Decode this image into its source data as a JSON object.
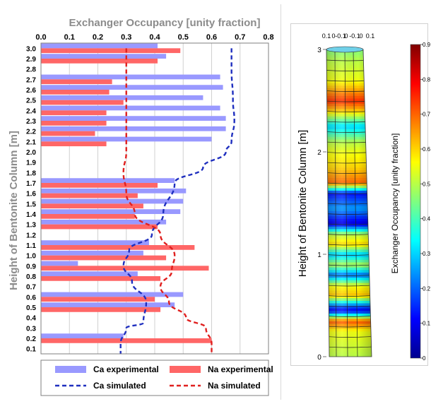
{
  "chart_data": [
    {
      "type": "bar",
      "title": "Exchanger Occupancy [unity fraction]",
      "ylabel": "Height of Bentonite Column  [m]",
      "xlim": [
        0,
        0.8
      ],
      "x_ticks": [
        "0.0",
        "0.1",
        "0.2",
        "0.3",
        "0.4",
        "0.5",
        "0.6",
        "0.7",
        "0.8"
      ],
      "categories": [
        "3.0",
        "2.9",
        "2.8",
        "2.7",
        "2.6",
        "2.5",
        "2.4",
        "2.3",
        "2.2",
        "2.1",
        "2.0",
        "1.9",
        "1.8",
        "1.7",
        "1.6",
        "1.5",
        "1.4",
        "1.3",
        "1.2",
        "1.1",
        "1.0",
        "0.9",
        "0.8",
        "0.7",
        "0.6",
        "0.5",
        "0.4",
        "0.3",
        "0.2",
        "0.1"
      ],
      "series": [
        {
          "name": "Ca experimental",
          "kind": "bar",
          "color": "#9999ff",
          "values": [
            0.41,
            0.44,
            null,
            0.63,
            0.64,
            0.57,
            0.63,
            0.65,
            0.65,
            0.6,
            null,
            null,
            null,
            0.47,
            0.51,
            0.5,
            0.49,
            0.44,
            null,
            0.38,
            0.36,
            0.13,
            0.34,
            null,
            0.5,
            0.47,
            null,
            null,
            0.29,
            null
          ]
        },
        {
          "name": "Na experimental",
          "kind": "bar",
          "color": "#ff6666",
          "values": [
            0.49,
            0.41,
            null,
            0.25,
            0.24,
            0.29,
            0.23,
            0.23,
            0.19,
            0.23,
            null,
            null,
            null,
            0.41,
            0.34,
            0.36,
            0.33,
            0.41,
            null,
            0.54,
            0.44,
            0.59,
            0.42,
            null,
            0.4,
            0.42,
            null,
            null,
            0.6,
            null
          ]
        },
        {
          "name": "Ca simulated",
          "kind": "line",
          "style": "dashed",
          "color": "#1f2fbf",
          "points": [
            [
              0.67,
              3.0
            ],
            [
              0.67,
              2.8
            ],
            [
              0.675,
              2.5
            ],
            [
              0.68,
              2.3
            ],
            [
              0.67,
              2.1
            ],
            [
              0.65,
              2.0
            ],
            [
              0.57,
              1.85
            ],
            [
              0.47,
              1.7
            ],
            [
              0.43,
              1.4
            ],
            [
              0.39,
              1.2
            ],
            [
              0.31,
              1.05
            ],
            [
              0.29,
              0.9
            ],
            [
              0.32,
              0.75
            ],
            [
              0.37,
              0.55
            ],
            [
              0.36,
              0.35
            ],
            [
              0.3,
              0.3
            ],
            [
              0.28,
              0.15
            ],
            [
              0.28,
              0.05
            ]
          ]
        },
        {
          "name": "Na simulated",
          "kind": "line",
          "style": "dashed",
          "color": "#e0201f",
          "points": [
            [
              0.3,
              3.0
            ],
            [
              0.3,
              2.6
            ],
            [
              0.3,
              2.0
            ],
            [
              0.29,
              1.8
            ],
            [
              0.3,
              1.6
            ],
            [
              0.33,
              1.4
            ],
            [
              0.42,
              1.2
            ],
            [
              0.47,
              1.0
            ],
            [
              0.46,
              0.85
            ],
            [
              0.42,
              0.7
            ],
            [
              0.45,
              0.55
            ],
            [
              0.51,
              0.4
            ],
            [
              0.58,
              0.3
            ],
            [
              0.6,
              0.15
            ],
            [
              0.6,
              0.05
            ]
          ]
        }
      ],
      "legend": {
        "position": "bottom",
        "columns": 2
      },
      "grid": "vertical"
    },
    {
      "type": "heatmap",
      "subtype": "3d-column-render",
      "ylabel": "Height of Bentonite Column [m]",
      "y_ticks": [
        "3",
        "2",
        "1",
        "0"
      ],
      "top_ticks": [
        "0.1",
        "0",
        "-0.1",
        "0",
        "-0.1",
        "0",
        "0.1"
      ],
      "colorbar_label": "Exchanger Occupancy [unity fraction]",
      "colorbar_ticks": [
        "0.9",
        "0.8",
        "0.7",
        "0.6",
        "0.5",
        "0.4",
        "0.3",
        "0.2",
        "0.1",
        "0"
      ],
      "colormap": "jet",
      "clim": [
        0,
        0.9
      ],
      "profile": [
        {
          "z": 3.0,
          "v": 0.45
        },
        {
          "z": 2.9,
          "v": 0.5
        },
        {
          "z": 2.7,
          "v": 0.55
        },
        {
          "z": 2.5,
          "v": 0.75
        },
        {
          "z": 2.4,
          "v": 0.6
        },
        {
          "z": 2.25,
          "v": 0.3
        },
        {
          "z": 2.1,
          "v": 0.5
        },
        {
          "z": 2.0,
          "v": 0.55
        },
        {
          "z": 1.85,
          "v": 0.6
        },
        {
          "z": 1.7,
          "v": 0.7
        },
        {
          "z": 1.6,
          "v": 0.12
        },
        {
          "z": 1.45,
          "v": 0.25
        },
        {
          "z": 1.3,
          "v": 0.08
        },
        {
          "z": 1.2,
          "v": 0.5
        },
        {
          "z": 1.1,
          "v": 0.6
        },
        {
          "z": 1.0,
          "v": 0.28
        },
        {
          "z": 0.9,
          "v": 0.5
        },
        {
          "z": 0.8,
          "v": 0.2
        },
        {
          "z": 0.7,
          "v": 0.55
        },
        {
          "z": 0.6,
          "v": 0.62
        },
        {
          "z": 0.5,
          "v": 0.2
        },
        {
          "z": 0.45,
          "v": 0.1
        },
        {
          "z": 0.35,
          "v": 0.72
        },
        {
          "z": 0.25,
          "v": 0.55
        },
        {
          "z": 0.0,
          "v": 0.5
        }
      ]
    }
  ]
}
